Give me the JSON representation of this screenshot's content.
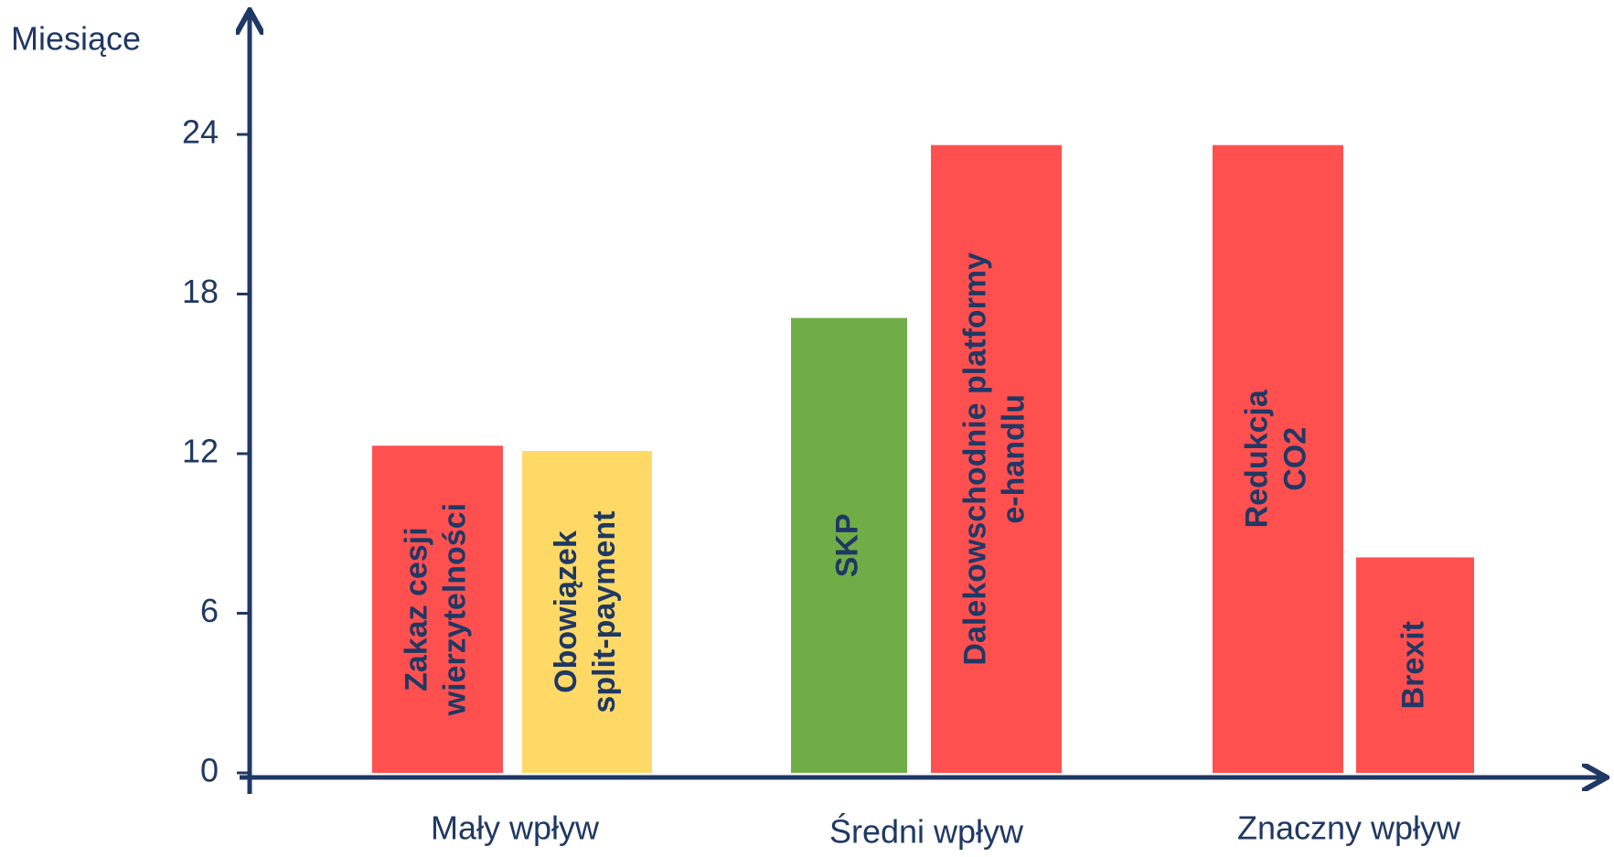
{
  "chart_data": {
    "type": "bar",
    "y_label": "Miesiące",
    "categories": [
      [
        "Zakaz cesji",
        "wierzytelności"
      ],
      [
        "Obowiązek",
        "split-payment"
      ],
      [
        "SKP"
      ],
      [
        "Dalekowschodnie platformy",
        "e-handlu"
      ],
      [
        "Redukcja",
        "CO2"
      ],
      [
        "Brexit"
      ]
    ],
    "values": [
      12.3,
      12.1,
      17.1,
      23.6,
      23.6,
      8.1
    ],
    "colors": [
      "#ff5050",
      "#ffd966",
      "#70ad47",
      "#ff5050",
      "#ff5050",
      "#ff5050"
    ],
    "groups": [
      "Mały wpływ",
      "Średni wpływ",
      "Znaczny wpływ"
    ],
    "ylim": [
      0,
      24
    ],
    "yticks": [
      0,
      6,
      12,
      18,
      24
    ]
  }
}
